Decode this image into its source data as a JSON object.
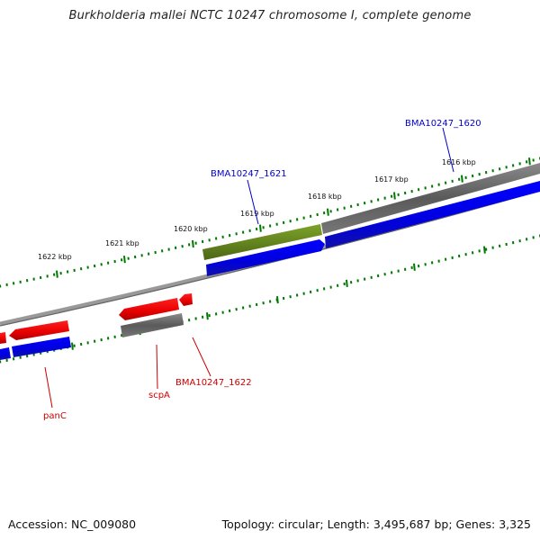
{
  "title": "Burkholderia mallei NCTC 10247 chromosome I, complete genome",
  "footer": {
    "accession": "Accession: NC_009080",
    "summary": "Topology: circular; Length: 3,495,687 bp; Genes: 3,325"
  },
  "scale_labels": [
    "1616 kbp",
    "1617 kbp",
    "1618 kbp",
    "1619 kbp",
    "1620 kbp",
    "1621 kbp",
    "1622 kbp"
  ],
  "gene_labels": [
    {
      "text": "BMA10247_1620",
      "color": "#0000cc"
    },
    {
      "text": "BMA10247_1621",
      "color": "#0000cc"
    },
    {
      "text": "BMA10247_1622",
      "color": "#cc0000"
    },
    {
      "text": "scpA",
      "color": "#cc0000"
    },
    {
      "text": "panC",
      "color": "#cc0000"
    }
  ],
  "colors": {
    "forward_cds": "#0000ee",
    "reverse_cds": "#ee0000",
    "gene": "#666666",
    "highlight": "#6b8e23",
    "ticks": "#007700",
    "backbone": "#888888"
  }
}
